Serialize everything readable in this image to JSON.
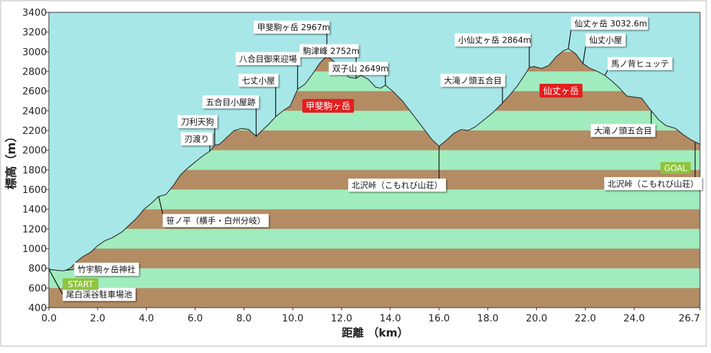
{
  "chart_data": {
    "type": "area",
    "xlabel": "距離 （km）",
    "ylabel": "標高（m）",
    "xlim": [
      0.0,
      26.7
    ],
    "ylim": [
      400,
      3400
    ],
    "x_ticks": [
      "0.0",
      "2.0",
      "4.0",
      "6.0",
      "8.0",
      "10.0",
      "12.0",
      "14.0",
      "16.0",
      "18.0",
      "20.0",
      "22.0",
      "24.0",
      "26.7"
    ],
    "x_tick_values": [
      0,
      2,
      4,
      6,
      8,
      10,
      12,
      14,
      16,
      18,
      20,
      22,
      24,
      26.7
    ],
    "y_ticks": [
      400,
      600,
      800,
      1000,
      1200,
      1400,
      1600,
      1800,
      2000,
      2200,
      2400,
      2600,
      2800,
      3000,
      3200,
      3400
    ],
    "band_colors": [
      "#b48c64",
      "#a0ecbe"
    ],
    "sky_color": "#a7e7e8",
    "profile": [
      [
        0.0,
        790
      ],
      [
        0.3,
        780
      ],
      [
        0.6,
        775
      ],
      [
        0.75,
        785
      ],
      [
        0.9,
        805
      ],
      [
        1.1,
        860
      ],
      [
        1.4,
        920
      ],
      [
        1.7,
        960
      ],
      [
        2.0,
        1030
      ],
      [
        2.3,
        1080
      ],
      [
        2.6,
        1110
      ],
      [
        3.0,
        1170
      ],
      [
        3.3,
        1240
      ],
      [
        3.6,
        1310
      ],
      [
        3.9,
        1400
      ],
      [
        4.2,
        1460
      ],
      [
        4.5,
        1530
      ],
      [
        4.8,
        1550
      ],
      [
        5.1,
        1640
      ],
      [
        5.4,
        1750
      ],
      [
        5.7,
        1820
      ],
      [
        6.0,
        1880
      ],
      [
        6.3,
        1940
      ],
      [
        6.6,
        1990
      ],
      [
        6.8,
        2050
      ],
      [
        7.0,
        2060
      ],
      [
        7.3,
        2130
      ],
      [
        7.6,
        2200
      ],
      [
        7.9,
        2220
      ],
      [
        8.2,
        2210
      ],
      [
        8.5,
        2140
      ],
      [
        8.7,
        2190
      ],
      [
        9.0,
        2260
      ],
      [
        9.3,
        2340
      ],
      [
        9.6,
        2400
      ],
      [
        9.9,
        2450
      ],
      [
        10.2,
        2620
      ],
      [
        10.5,
        2670
      ],
      [
        10.8,
        2770
      ],
      [
        11.1,
        2880
      ],
      [
        11.4,
        2960
      ],
      [
        11.7,
        2900
      ],
      [
        12.0,
        2830
      ],
      [
        12.3,
        2740
      ],
      [
        12.6,
        2730
      ],
      [
        12.8,
        2760
      ],
      [
        13.1,
        2720
      ],
      [
        13.4,
        2640
      ],
      [
        13.6,
        2630
      ],
      [
        13.8,
        2660
      ],
      [
        14.1,
        2600
      ],
      [
        14.5,
        2500
      ],
      [
        14.9,
        2370
      ],
      [
        15.3,
        2240
      ],
      [
        15.7,
        2110
      ],
      [
        16.0,
        2040
      ],
      [
        16.3,
        2100
      ],
      [
        16.6,
        2170
      ],
      [
        16.9,
        2210
      ],
      [
        17.2,
        2200
      ],
      [
        17.5,
        2240
      ],
      [
        17.8,
        2300
      ],
      [
        18.2,
        2380
      ],
      [
        18.6,
        2480
      ],
      [
        18.9,
        2560
      ],
      [
        19.2,
        2650
      ],
      [
        19.5,
        2760
      ],
      [
        19.7,
        2840
      ],
      [
        19.9,
        2850
      ],
      [
        20.2,
        2830
      ],
      [
        20.5,
        2860
      ],
      [
        20.8,
        2950
      ],
      [
        21.1,
        3010
      ],
      [
        21.3,
        3030
      ],
      [
        21.6,
        2980
      ],
      [
        21.9,
        2880
      ],
      [
        22.2,
        2830
      ],
      [
        22.5,
        2800
      ],
      [
        22.8,
        2760
      ],
      [
        23.1,
        2700
      ],
      [
        23.4,
        2630
      ],
      [
        23.7,
        2550
      ],
      [
        24.0,
        2540
      ],
      [
        24.3,
        2530
      ],
      [
        24.7,
        2400
      ],
      [
        25.0,
        2310
      ],
      [
        25.3,
        2250
      ],
      [
        25.7,
        2220
      ],
      [
        26.0,
        2160
      ],
      [
        26.3,
        2110
      ],
      [
        26.7,
        2060
      ]
    ],
    "annotations": [
      {
        "text": "尾白渓谷駐車場池",
        "x": 0.0,
        "y": 790,
        "ly": 535
      },
      {
        "text": "竹宇駒ヶ岳神社",
        "x": 0.7,
        "y": 780,
        "ly": 790
      },
      {
        "text": "笹ノ平（横手・白州分岐）",
        "x": 4.5,
        "y": 1530,
        "ly": 1285
      },
      {
        "text": "刃渡り",
        "x": 6.6,
        "y": 1990,
        "ly": 2115
      },
      {
        "text": "刀利天狗",
        "x": 6.8,
        "y": 2050,
        "ly": 2290
      },
      {
        "text": "五合目小屋跡",
        "x": 8.5,
        "y": 2140,
        "ly": 2490
      },
      {
        "text": "七丈小屋",
        "x": 9.3,
        "y": 2340,
        "ly": 2710
      },
      {
        "text": "八合目御来迎場",
        "x": 10.2,
        "y": 2620,
        "ly": 2930
      },
      {
        "text": "甲斐駒ヶ岳 2967m",
        "x": 11.4,
        "y": 2960,
        "ly": 3250
      },
      {
        "text": "駒津峰 2752m",
        "x": 12.6,
        "y": 2730,
        "ly": 3010
      },
      {
        "text": "双子山 2649m",
        "x": 13.8,
        "y": 2660,
        "ly": 2830
      },
      {
        "text": "北沢峠（こもれび山荘）",
        "x": 16.0,
        "y": 2040,
        "ly": 1645
      },
      {
        "text": "大滝ノ頭五合目",
        "x": 18.6,
        "y": 2480,
        "ly": 2710
      },
      {
        "text": "小仙丈ヶ岳 2864m",
        "x": 19.7,
        "y": 2840,
        "ly": 3120
      },
      {
        "text": "仙丈ヶ岳 3032.6m",
        "x": 21.3,
        "y": 3030,
        "ly": 3290
      },
      {
        "text": "仙丈小屋",
        "x": 21.9,
        "y": 2880,
        "ly": 3120
      },
      {
        "text": "馬ノ背ヒュッテ",
        "x": 22.8,
        "y": 2760,
        "ly": 2880
      },
      {
        "text": "大滝ノ頭五合目",
        "x": 24.7,
        "y": 2400,
        "ly": 2200
      },
      {
        "text": "北沢峠（こもれび山荘）",
        "x": 26.5,
        "y": 2080,
        "ly": 1660
      }
    ],
    "peak_labels": [
      {
        "text": "甲斐駒ヶ岳",
        "x": 11.45,
        "y": 2450
      },
      {
        "text": "仙丈ヶ岳",
        "x": 21.0,
        "y": 2605
      }
    ],
    "markers": [
      {
        "text": "START",
        "x": 1.3,
        "y": 640
      },
      {
        "text": "GOAL",
        "x": 25.7,
        "y": 1820
      }
    ],
    "marker_color": "#8fc43f",
    "peak_label_color": "#e31f1f"
  }
}
